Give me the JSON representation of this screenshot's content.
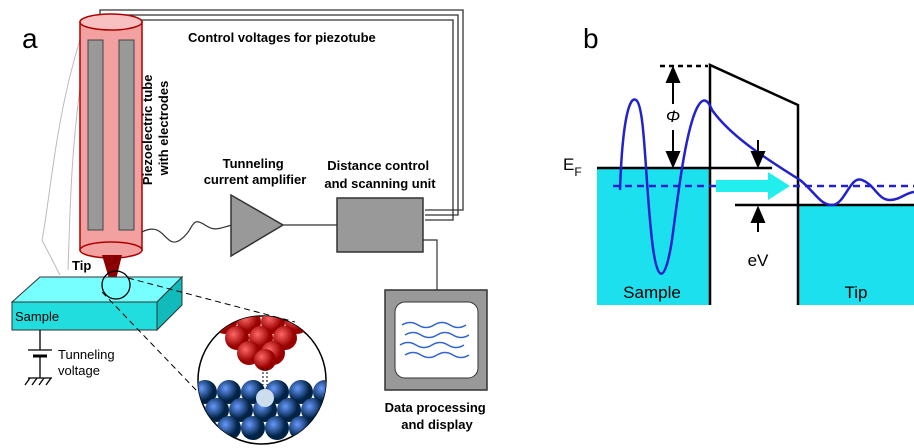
{
  "panel_a": {
    "label": "a",
    "control_voltages": "Control voltages for piezotube",
    "piezo_label": [
      "Piezoelectric tube",
      "with electrodes"
    ],
    "amplifier_label": [
      "Tunneling",
      "current amplifier"
    ],
    "distance_label": [
      "Distance control",
      "and scanning unit"
    ],
    "tip_label": "Tip",
    "sample_label": "Sample",
    "voltage_label": [
      "Tunneling",
      "voltage"
    ],
    "display_label": [
      "Data processing",
      "and display"
    ]
  },
  "panel_b": {
    "label": "b",
    "fermi": "E",
    "fermi_sub": "F",
    "work_function": "Φ",
    "bias": "eV",
    "sample_label": "Sample",
    "tip_label": "Tip"
  }
}
